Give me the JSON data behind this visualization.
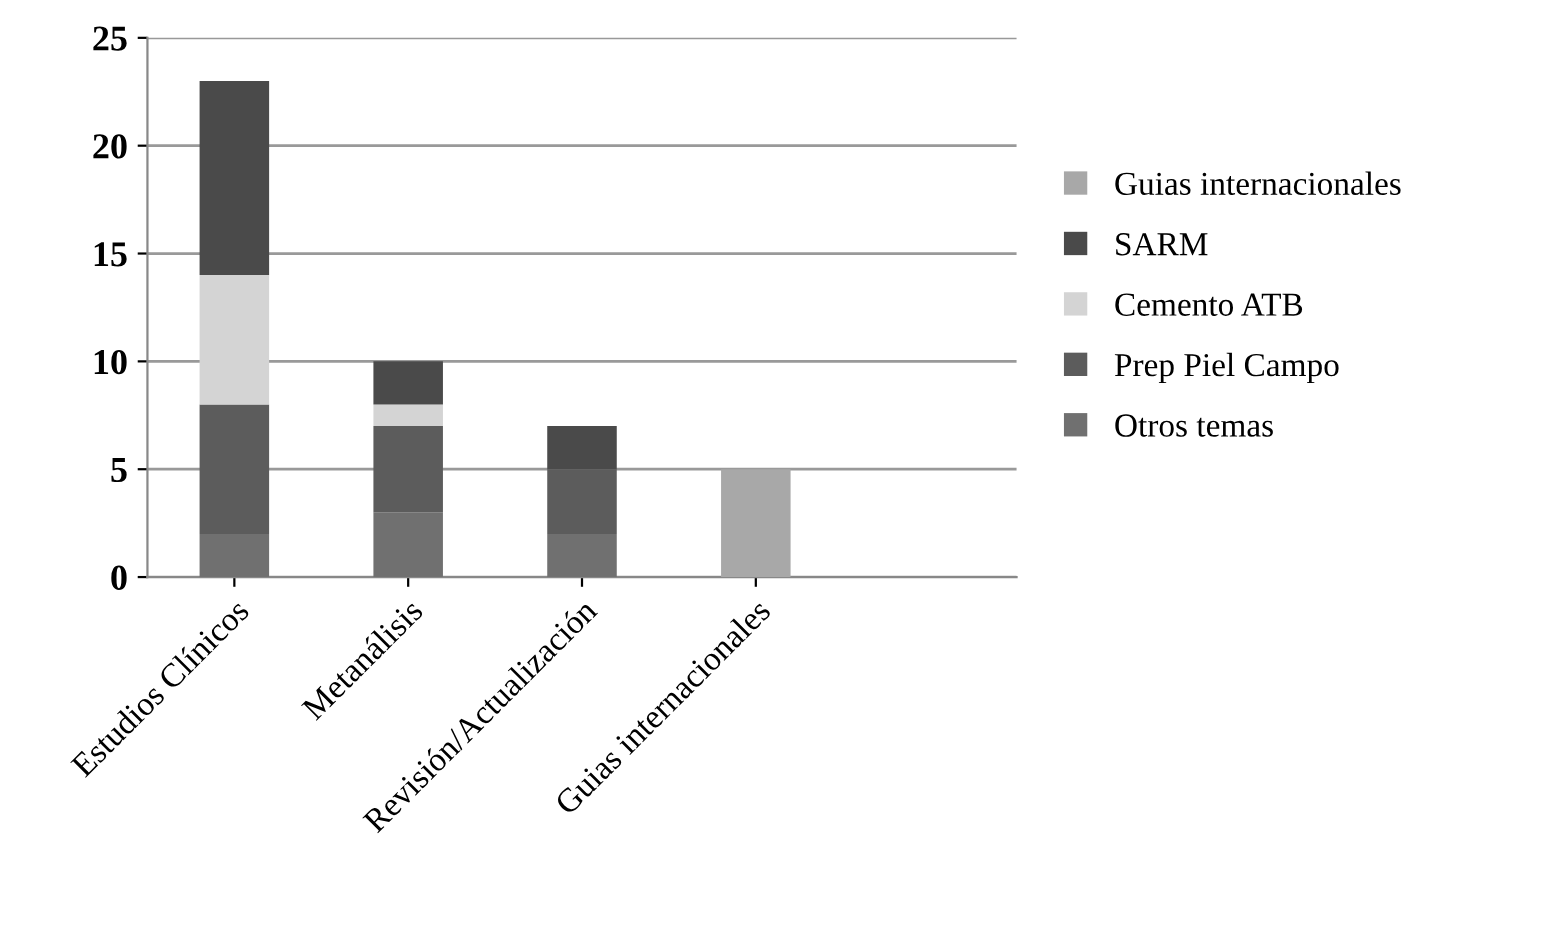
{
  "chart_data": {
    "type": "bar",
    "stacked": true,
    "categories": [
      "Estudios Clínicos",
      "Metanálisis",
      "Revisión/Actualización",
      "Guias internacionales"
    ],
    "series": [
      {
        "name": "Otros temas",
        "color": "#707070",
        "values": [
          2,
          3,
          2,
          0
        ]
      },
      {
        "name": "Prep Piel Campo",
        "color": "#5c5c5c",
        "values": [
          6,
          4,
          3,
          0
        ]
      },
      {
        "name": "Cemento ATB",
        "color": "#d4d4d4",
        "values": [
          6,
          1,
          0,
          0
        ]
      },
      {
        "name": "SARM",
        "color": "#4a4a4a",
        "values": [
          9,
          2,
          2,
          0
        ]
      },
      {
        "name": "Guias internacionales",
        "color": "#a8a8a8",
        "values": [
          0,
          0,
          0,
          5
        ]
      }
    ],
    "ylim": [
      0,
      25
    ],
    "yticks": [
      0,
      5,
      10,
      15,
      20,
      25
    ],
    "grid": "y",
    "legend": "right"
  }
}
